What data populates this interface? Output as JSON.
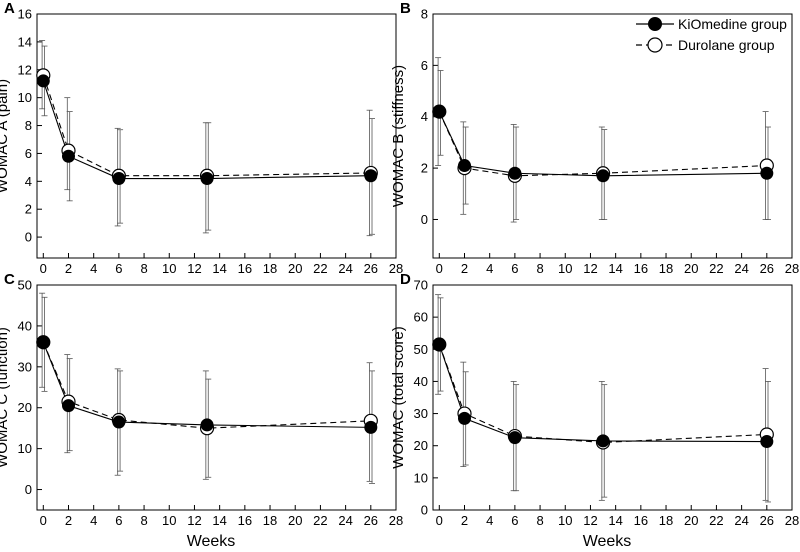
{
  "figure": {
    "xlabel": "Weeks",
    "legend": {
      "placement": "top-right",
      "entries": [
        {
          "name": "KiOmedine group",
          "marker": "filled-circle",
          "line": "solid"
        },
        {
          "name": "Durolane group",
          "marker": "open-circle",
          "line": "dashed"
        }
      ]
    }
  },
  "chart_data": [
    {
      "type": "line",
      "panel": "A",
      "ylabel": "WOMAC A (pain)",
      "x": [
        0,
        2,
        6,
        13,
        26
      ],
      "xlim": [
        -0.5,
        28
      ],
      "xticks": [
        0,
        2,
        4,
        6,
        8,
        10,
        12,
        14,
        16,
        18,
        20,
        22,
        24,
        26,
        28
      ],
      "ylim": [
        -1.5,
        16
      ],
      "yticks": [
        0,
        2,
        4,
        6,
        8,
        10,
        12,
        14,
        16
      ],
      "grid": false,
      "series": [
        {
          "name": "KiOmedine group",
          "values": [
            11.2,
            5.8,
            4.2,
            4.2,
            4.4
          ],
          "err_low": [
            8.7,
            2.6,
            1.0,
            0.5,
            0.2
          ],
          "err_high": [
            13.7,
            9.0,
            7.7,
            8.2,
            8.5
          ]
        },
        {
          "name": "Durolane group",
          "values": [
            11.6,
            6.2,
            4.4,
            4.4,
            4.6
          ],
          "err_low": [
            9.2,
            3.4,
            0.8,
            0.3,
            0.1
          ],
          "err_high": [
            14.1,
            10.0,
            7.8,
            8.2,
            9.1
          ]
        }
      ]
    },
    {
      "type": "line",
      "panel": "B",
      "ylabel": "WOMAC B (stiffness)",
      "x": [
        0,
        2,
        6,
        13,
        26
      ],
      "xlim": [
        -0.5,
        28
      ],
      "xticks": [
        0,
        2,
        4,
        6,
        8,
        10,
        12,
        14,
        16,
        18,
        20,
        22,
        24,
        26,
        28
      ],
      "ylim": [
        -1.5,
        8
      ],
      "yticks": [
        0,
        2,
        4,
        6,
        8
      ],
      "grid": false,
      "series": [
        {
          "name": "KiOmedine group",
          "values": [
            4.2,
            2.1,
            1.8,
            1.7,
            1.8
          ],
          "err_low": [
            2.5,
            0.6,
            0.0,
            0.0,
            0.0
          ],
          "err_high": [
            5.8,
            3.6,
            3.6,
            3.5,
            3.6
          ]
        },
        {
          "name": "Durolane group",
          "values": [
            4.2,
            2.0,
            1.7,
            1.8,
            2.1
          ],
          "err_low": [
            2.1,
            0.2,
            -0.1,
            0.0,
            0.0
          ],
          "err_high": [
            6.3,
            3.8,
            3.7,
            3.6,
            4.2
          ]
        }
      ]
    },
    {
      "type": "line",
      "panel": "C",
      "ylabel": "WOMAC C (function)",
      "x": [
        0,
        2,
        6,
        13,
        26
      ],
      "xlim": [
        -0.5,
        28
      ],
      "xticks": [
        0,
        2,
        4,
        6,
        8,
        10,
        12,
        14,
        16,
        18,
        20,
        22,
        24,
        26,
        28
      ],
      "ylim": [
        -5,
        50
      ],
      "yticks": [
        0,
        10,
        20,
        30,
        40,
        50
      ],
      "grid": false,
      "series": [
        {
          "name": "KiOmedine group",
          "values": [
            36,
            20.5,
            16.5,
            15.8,
            15.2
          ],
          "err_low": [
            24,
            9.5,
            4.5,
            3.0,
            1.5
          ],
          "err_high": [
            47,
            32,
            29,
            27,
            29
          ]
        },
        {
          "name": "Durolane group",
          "values": [
            36,
            21.5,
            17,
            15,
            16.8
          ],
          "err_low": [
            25,
            9.0,
            3.5,
            2.5,
            2.0
          ],
          "err_high": [
            48,
            33,
            29.5,
            29,
            31
          ]
        }
      ]
    },
    {
      "type": "line",
      "panel": "D",
      "ylabel": "WOMAC (total score)",
      "x": [
        0,
        2,
        6,
        13,
        26
      ],
      "xlim": [
        -0.5,
        28
      ],
      "xticks": [
        0,
        2,
        4,
        6,
        8,
        10,
        12,
        14,
        16,
        18,
        20,
        22,
        24,
        26,
        28
      ],
      "ylim": [
        0,
        70
      ],
      "yticks": [
        0,
        10,
        20,
        30,
        40,
        50,
        60,
        70
      ],
      "grid": false,
      "series": [
        {
          "name": "KiOmedine group",
          "values": [
            51.5,
            28.5,
            22.5,
            21.5,
            21.3
          ],
          "err_low": [
            37,
            14,
            6,
            4,
            2.5
          ],
          "err_high": [
            66,
            43,
            39,
            39,
            40
          ]
        },
        {
          "name": "Durolane group",
          "values": [
            51.5,
            30,
            23,
            21,
            23.5
          ],
          "err_low": [
            36,
            13.5,
            6,
            3,
            3
          ],
          "err_high": [
            67,
            46,
            40,
            40,
            44
          ]
        }
      ]
    }
  ]
}
